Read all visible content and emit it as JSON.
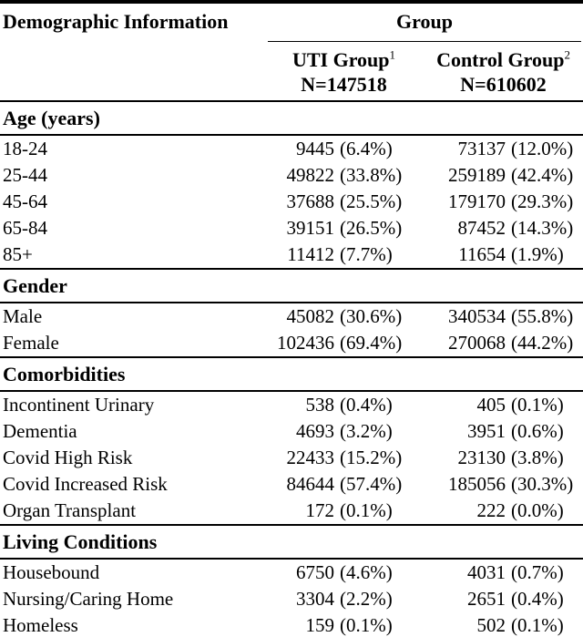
{
  "colors": {
    "text": "#000000",
    "background": "#ffffff",
    "rule": "#000000"
  },
  "header": {
    "col1": "Demographic Information",
    "group": "Group",
    "uti": {
      "name": "UTI Group",
      "sup": "1",
      "n": "N=147518"
    },
    "control": {
      "name": "Control Group",
      "sup": "2",
      "n": "N=610602"
    }
  },
  "sections": [
    {
      "title": "Age (years)",
      "rows": [
        {
          "label": "18-24",
          "uti_count": "9445",
          "uti_pct": "(6.4%)",
          "control_count": "73137",
          "control_pct": "(12.0%)"
        },
        {
          "label": "25-44",
          "uti_count": "49822",
          "uti_pct": "(33.8%)",
          "control_count": "259189",
          "control_pct": "(42.4%)"
        },
        {
          "label": "45-64",
          "uti_count": "37688",
          "uti_pct": "(25.5%)",
          "control_count": "179170",
          "control_pct": "(29.3%)"
        },
        {
          "label": "65-84",
          "uti_count": "39151",
          "uti_pct": "(26.5%)",
          "control_count": "87452",
          "control_pct": "(14.3%)"
        },
        {
          "label": "85+",
          "uti_count": "11412",
          "uti_pct": "(7.7%)",
          "control_count": "11654",
          "control_pct": "(1.9%)"
        }
      ]
    },
    {
      "title": "Gender",
      "rows": [
        {
          "label": "Male",
          "uti_count": "45082",
          "uti_pct": "(30.6%)",
          "control_count": "340534",
          "control_pct": "(55.8%)"
        },
        {
          "label": "Female",
          "uti_count": "102436",
          "uti_pct": "(69.4%)",
          "control_count": "270068",
          "control_pct": "(44.2%)"
        }
      ]
    },
    {
      "title": "Comorbidities",
      "rows": [
        {
          "label": "Incontinent Urinary",
          "uti_count": "538",
          "uti_pct": "(0.4%)",
          "control_count": "405",
          "control_pct": "(0.1%)"
        },
        {
          "label": "Dementia",
          "uti_count": "4693",
          "uti_pct": "(3.2%)",
          "control_count": "3951",
          "control_pct": "(0.6%)"
        },
        {
          "label": "Covid High Risk",
          "uti_count": "22433",
          "uti_pct": "(15.2%)",
          "control_count": "23130",
          "control_pct": "(3.8%)"
        },
        {
          "label": "Covid Increased Risk",
          "uti_count": "84644",
          "uti_pct": "(57.4%)",
          "control_count": "185056",
          "control_pct": "(30.3%)"
        },
        {
          "label": "Organ Transplant",
          "uti_count": "172",
          "uti_pct": "(0.1%)",
          "control_count": "222",
          "control_pct": "(0.0%)"
        }
      ]
    },
    {
      "title": "Living Conditions",
      "rows": [
        {
          "label": "Housebound",
          "uti_count": "6750",
          "uti_pct": "(4.6%)",
          "control_count": "4031",
          "control_pct": "(0.7%)"
        },
        {
          "label": "Nursing/Caring Home",
          "uti_count": "3304",
          "uti_pct": "(2.2%)",
          "control_count": "2651",
          "control_pct": "(0.4%)"
        },
        {
          "label": "Homeless",
          "uti_count": "159",
          "uti_pct": "(0.1%)",
          "control_count": "502",
          "control_pct": "(0.1%)"
        }
      ]
    }
  ]
}
